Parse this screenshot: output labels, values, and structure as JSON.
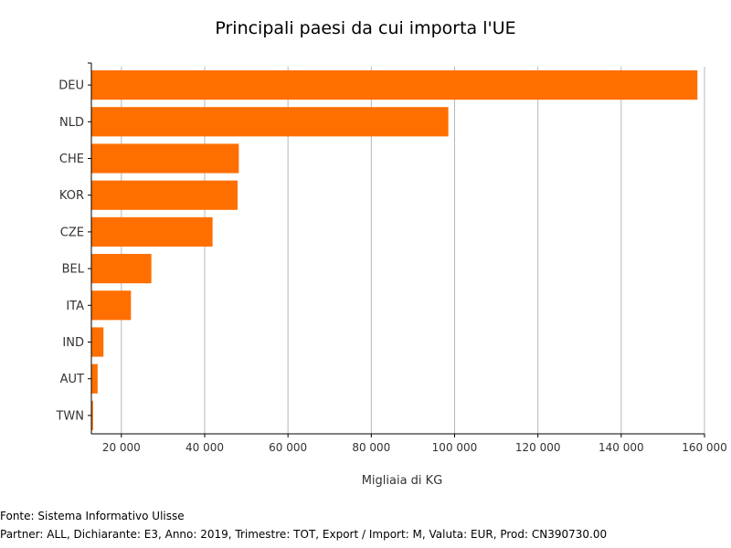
{
  "chart_data": {
    "type": "bar",
    "orientation": "horizontal",
    "title": "Principali paesi da cui importa l'UE",
    "xlabel": "Migliaia di KG",
    "ylabel": "",
    "categories": [
      "DEU",
      "NLD",
      "CHE",
      "KOR",
      "CZE",
      "BEL",
      "ITA",
      "IND",
      "AUT",
      "TWN"
    ],
    "values": [
      158300,
      98500,
      48200,
      47900,
      41900,
      27200,
      22300,
      15700,
      14300,
      13200
    ],
    "xlim": [
      12800,
      160000
    ],
    "xticks": [
      20000,
      40000,
      60000,
      80000,
      100000,
      120000,
      140000,
      160000
    ],
    "xtick_labels": [
      "20 000",
      "40 000",
      "60 000",
      "80 000",
      "100 000",
      "120 000",
      "140 000",
      "160 000"
    ],
    "grid": true,
    "bar_color": "#ff6f00"
  },
  "footer": {
    "source": "Fonte: Sistema Informativo Ulisse",
    "params": "Partner: ALL, Dichiarante: E3, Anno: 2019, Trimestre: TOT, Export / Import: M, Valuta: EUR, Prod: CN390730.00"
  }
}
